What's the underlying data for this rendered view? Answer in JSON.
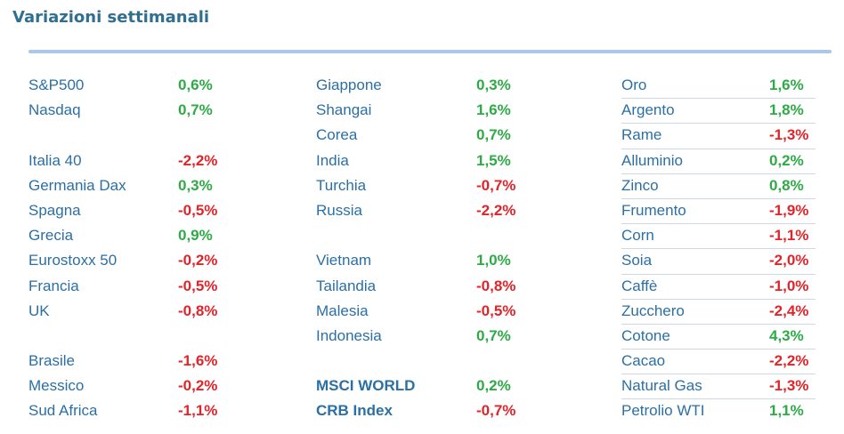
{
  "title": "Variazioni settimanali",
  "col1": [
    {
      "label": "S&P500",
      "value": "0,6%",
      "sign": "pos"
    },
    {
      "label": "Nasdaq",
      "value": "0,7%",
      "sign": "pos"
    },
    {
      "label": "",
      "value": "",
      "sign": ""
    },
    {
      "label": "Italia 40",
      "value": "-2,2%",
      "sign": "neg"
    },
    {
      "label": "Germania Dax",
      "value": "0,3%",
      "sign": "pos"
    },
    {
      "label": "Spagna",
      "value": "-0,5%",
      "sign": "neg"
    },
    {
      "label": "Grecia",
      "value": "0,9%",
      "sign": "pos"
    },
    {
      "label": "Eurostoxx 50",
      "value": "-0,2%",
      "sign": "neg"
    },
    {
      "label": "Francia",
      "value": "-0,5%",
      "sign": "neg"
    },
    {
      "label": "UK",
      "value": "-0,8%",
      "sign": "neg"
    },
    {
      "label": "",
      "value": "",
      "sign": ""
    },
    {
      "label": "Brasile",
      "value": "-1,6%",
      "sign": "neg"
    },
    {
      "label": "Messico",
      "value": "-0,2%",
      "sign": "neg"
    },
    {
      "label": "Sud Africa",
      "value": "-1,1%",
      "sign": "neg"
    }
  ],
  "col2": [
    {
      "label": "Giappone",
      "value": "0,3%",
      "sign": "pos"
    },
    {
      "label": "Shangai",
      "value": "1,6%",
      "sign": "pos"
    },
    {
      "label": "Corea",
      "value": "0,7%",
      "sign": "pos"
    },
    {
      "label": "India",
      "value": "1,5%",
      "sign": "pos"
    },
    {
      "label": "Turchia",
      "value": "-0,7%",
      "sign": "neg"
    },
    {
      "label": "Russia",
      "value": "-2,2%",
      "sign": "neg"
    },
    {
      "label": "",
      "value": "",
      "sign": ""
    },
    {
      "label": "Vietnam",
      "value": "1,0%",
      "sign": "pos"
    },
    {
      "label": "Tailandia",
      "value": "-0,8%",
      "sign": "neg"
    },
    {
      "label": "Malesia",
      "value": "-0,5%",
      "sign": "neg"
    },
    {
      "label": "Indonesia",
      "value": "0,7%",
      "sign": "pos"
    },
    {
      "label": "",
      "value": "",
      "sign": ""
    },
    {
      "label": "MSCI WORLD",
      "value": "0,2%",
      "sign": "pos",
      "bold": true
    },
    {
      "label": "CRB Index",
      "value": "-0,7%",
      "sign": "neg",
      "bold": true
    }
  ],
  "col3": [
    {
      "label": "Oro",
      "value": "1,6%",
      "sign": "pos"
    },
    {
      "label": "Argento",
      "value": "1,8%",
      "sign": "pos"
    },
    {
      "label": "Rame",
      "value": "-1,3%",
      "sign": "neg"
    },
    {
      "label": "Alluminio",
      "value": "0,2%",
      "sign": "pos"
    },
    {
      "label": "Zinco",
      "value": "0,8%",
      "sign": "pos"
    },
    {
      "label": "Frumento",
      "value": "-1,9%",
      "sign": "neg"
    },
    {
      "label": "Corn",
      "value": "-1,1%",
      "sign": "neg"
    },
    {
      "label": "Soia",
      "value": "-2,0%",
      "sign": "neg"
    },
    {
      "label": "Caffè",
      "value": "-1,0%",
      "sign": "neg"
    },
    {
      "label": "Zucchero",
      "value": "-2,4%",
      "sign": "neg"
    },
    {
      "label": "Cotone",
      "value": "4,3%",
      "sign": "pos"
    },
    {
      "label": "Cacao",
      "value": "-2,2%",
      "sign": "neg"
    },
    {
      "label": "Natural Gas",
      "value": "-1,3%",
      "sign": "neg"
    },
    {
      "label": "Petrolio WTI",
      "value": "1,1%",
      "sign": "pos"
    }
  ],
  "colors": {
    "title": "#2f6f8f",
    "label": "#2b6fa5",
    "positive": "#2eaa46",
    "negative": "#e1242a",
    "rule": "#a9c9e6"
  }
}
